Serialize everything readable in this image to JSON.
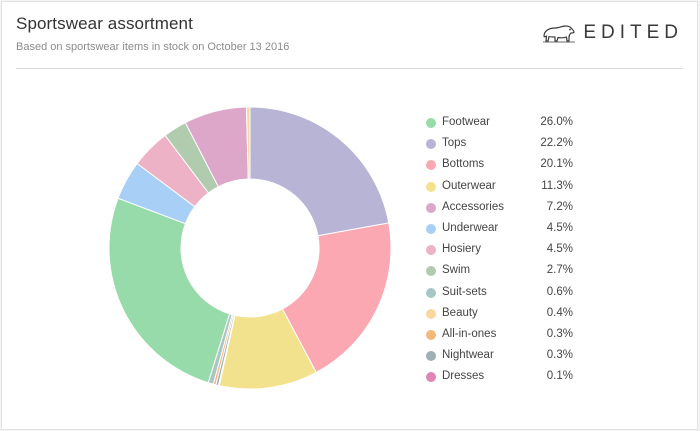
{
  "header": {
    "title": "Sportswear assortment",
    "subtitle": "Based on sportswear items in stock on October 13 2016"
  },
  "brand": {
    "name": "EDITED",
    "logo_icon": "polar-bear-icon"
  },
  "chart_data": {
    "type": "pie",
    "variant": "donut",
    "title": "Sportswear assortment",
    "subtitle": "Based on sportswear items in stock on October 13 2016",
    "legend_position": "right",
    "unit": "%",
    "slices": [
      {
        "label": "Footwear",
        "value": 26.0,
        "display": "26.0%",
        "color": "#98dbab"
      },
      {
        "label": "Tops",
        "value": 22.2,
        "display": "22.2%",
        "color": "#b7b4d6"
      },
      {
        "label": "Bottoms",
        "value": 20.1,
        "display": "20.1%",
        "color": "#fba8b3"
      },
      {
        "label": "Outerwear",
        "value": 11.3,
        "display": "11.3%",
        "color": "#f2e28d"
      },
      {
        "label": "Accessories",
        "value": 7.2,
        "display": "7.2%",
        "color": "#dda7c9"
      },
      {
        "label": "Underwear",
        "value": 4.5,
        "display": "4.5%",
        "color": "#a8d0f7"
      },
      {
        "label": "Hosiery",
        "value": 4.5,
        "display": "4.5%",
        "color": "#eeb2c7"
      },
      {
        "label": "Swim",
        "value": 2.7,
        "display": "2.7%",
        "color": "#b1cbaf"
      },
      {
        "label": "Suit-sets",
        "value": 0.6,
        "display": "0.6%",
        "color": "#a9c6c4"
      },
      {
        "label": "Beauty",
        "value": 0.4,
        "display": "0.4%",
        "color": "#fad79f"
      },
      {
        "label": "All-in-ones",
        "value": 0.3,
        "display": "0.3%",
        "color": "#f4b87b"
      },
      {
        "label": "Nightwear",
        "value": 0.3,
        "display": "0.3%",
        "color": "#9eb0b2"
      },
      {
        "label": "Dresses",
        "value": 0.1,
        "display": "0.1%",
        "color": "#e086b7"
      }
    ],
    "draw_order": [
      "Tops",
      "Bottoms",
      "Outerwear",
      "Dresses",
      "Nightwear",
      "All-in-ones",
      "Suit-sets",
      "Footwear",
      "Underwear",
      "Hosiery",
      "Swim",
      "Accessories",
      "Beauty"
    ]
  }
}
